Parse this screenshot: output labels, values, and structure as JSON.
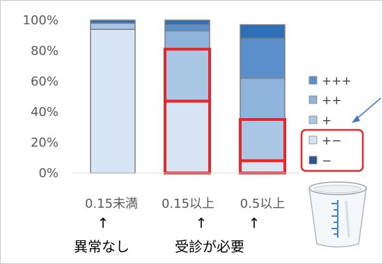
{
  "chart_data": {
    "type": "bar",
    "stacked": true,
    "categories": [
      "0.15未満",
      "0.15以上",
      "0.5以上"
    ],
    "series": [
      {
        "name": "−",
        "color": "#2f5597",
        "values": [
          0,
          0,
          0
        ]
      },
      {
        "name": "+−",
        "color": "#d6e4f3",
        "values": [
          94,
          47,
          8
        ]
      },
      {
        "name": "+",
        "color": "#a9c6e4",
        "values": [
          4,
          34,
          27
        ]
      },
      {
        "name": "++",
        "color": "#8eb4dc",
        "values": [
          0,
          12,
          27
        ]
      },
      {
        "name": "+++",
        "color": "#5b8fcb",
        "values": [
          0,
          4,
          26
        ]
      },
      {
        "name": "",
        "color": "#2e6fb7",
        "values": [
          2,
          3,
          9
        ]
      }
    ],
    "legend_series": [
      "+++",
      "++",
      "+",
      "+−",
      "−"
    ],
    "y_ticks": [
      "100%",
      "80%",
      "60%",
      "40%",
      "20%",
      "0%"
    ],
    "ylim": [
      0,
      100
    ],
    "y_unit": "%",
    "legend_position": "right",
    "highlight_color": "#e8262a",
    "highlighted_segments": [
      {
        "category": "0.15以上",
        "series": "+−"
      },
      {
        "category": "0.15以上",
        "series": "+"
      },
      {
        "category": "0.5以上",
        "series": "+−"
      },
      {
        "category": "0.5以上",
        "series": "+"
      }
    ],
    "highlighted_legend_entries": [
      "+−",
      "−"
    ],
    "annotations": {
      "arrow_glyph": "↑",
      "left_note": "異常なし",
      "right_note": "受診が必要"
    }
  }
}
